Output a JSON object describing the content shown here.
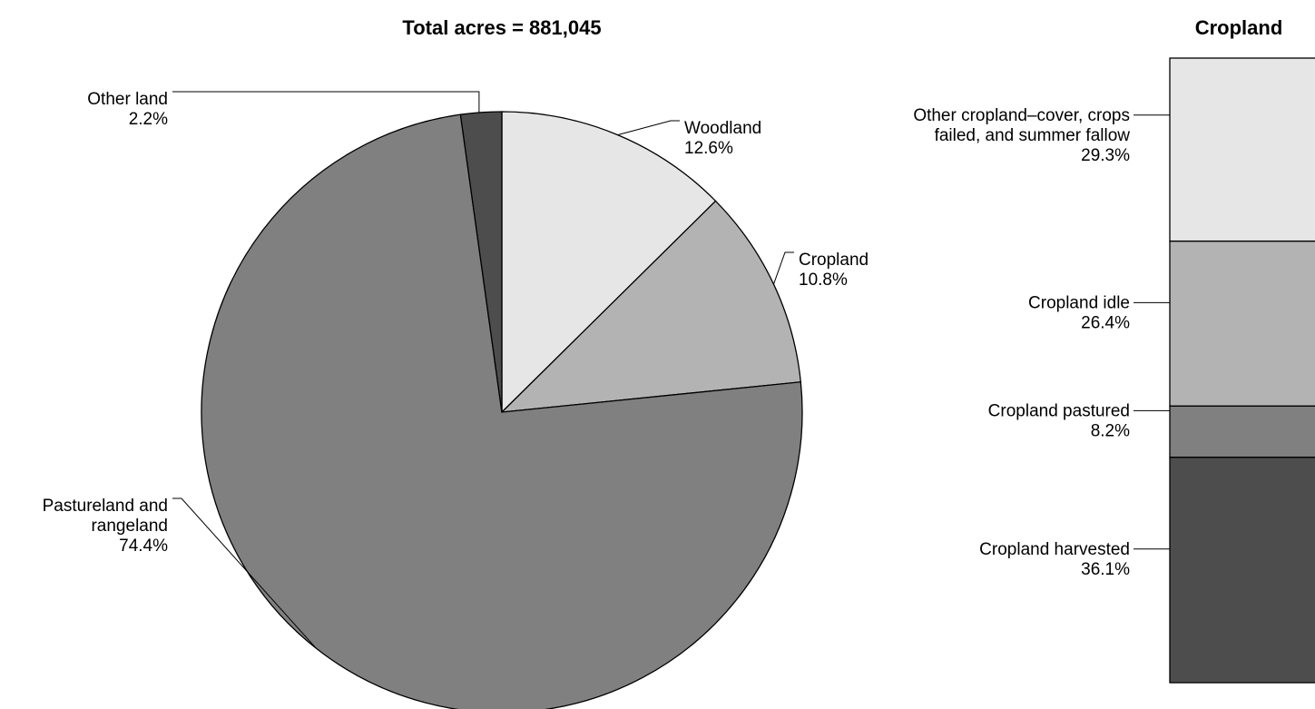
{
  "chart_data": [
    {
      "type": "pie",
      "title": "Total acres = 881,045",
      "start_angle_deg": 0,
      "direction": "clockwise",
      "slices": [
        {
          "label_lines": [
            "Woodland"
          ],
          "value": 12.6,
          "value_label": "12.6%",
          "color": "#e6e6e6"
        },
        {
          "label_lines": [
            "Cropland"
          ],
          "value": 10.8,
          "value_label": "10.8%",
          "color": "#b3b3b3"
        },
        {
          "label_lines": [
            "Pastureland and",
            "rangeland"
          ],
          "value": 74.4,
          "value_label": "74.4%",
          "color": "#808080"
        },
        {
          "label_lines": [
            "Other land"
          ],
          "value": 2.2,
          "value_label": "2.2%",
          "color": "#4d4d4d"
        }
      ]
    },
    {
      "type": "bar",
      "stacked": true,
      "title": "Cropland",
      "segments": [
        {
          "label_lines": [
            "Cropland harvested"
          ],
          "value": 36.1,
          "value_label": "36.1%",
          "color": "#4d4d4d"
        },
        {
          "label_lines": [
            "Cropland pastured"
          ],
          "value": 8.2,
          "value_label": "8.2%",
          "color": "#808080"
        },
        {
          "label_lines": [
            "Cropland idle"
          ],
          "value": 26.4,
          "value_label": "26.4%",
          "color": "#b3b3b3"
        },
        {
          "label_lines": [
            "Other cropland–cover, crops",
            "failed, and summer fallow"
          ],
          "value": 29.3,
          "value_label": "29.3%",
          "color": "#e6e6e6"
        }
      ]
    }
  ]
}
